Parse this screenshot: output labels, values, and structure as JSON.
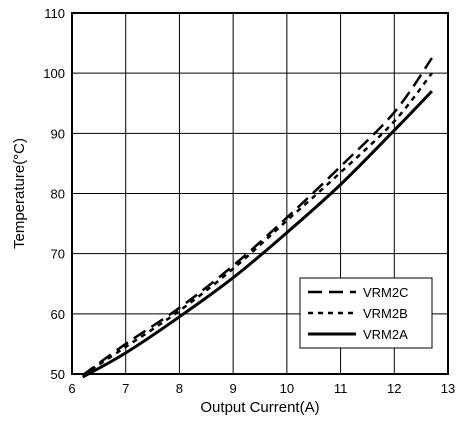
{
  "chart_data": {
    "type": "line",
    "xlabel": "Output Current(A)",
    "ylabel": "Temperature(°C)",
    "xlim": [
      6,
      13
    ],
    "ylim": [
      50,
      110
    ],
    "xticks": [
      "6",
      "7",
      "8",
      "9",
      "10",
      "11",
      "12",
      "13"
    ],
    "yticks": [
      "50",
      "60",
      "70",
      "80",
      "90",
      "100",
      "110"
    ],
    "grid": true,
    "legend_position": "lower-right",
    "series": [
      {
        "name": "VRM2C",
        "style": "long-dash",
        "x": [
          6.2,
          7,
          8,
          9,
          10,
          11,
          12,
          12.7
        ],
        "y": [
          49.8,
          55,
          61,
          68,
          76,
          84.5,
          93.5,
          102.5
        ]
      },
      {
        "name": "VRM2B",
        "style": "short-dash",
        "x": [
          6.2,
          7,
          8,
          9,
          10,
          11,
          12,
          12.7
        ],
        "y": [
          49.8,
          54.5,
          60.5,
          67.5,
          75.5,
          83.5,
          92,
          100
        ]
      },
      {
        "name": "VRM2A",
        "style": "solid",
        "x": [
          6.2,
          7,
          8,
          9,
          10,
          11,
          12,
          12.7
        ],
        "y": [
          49.5,
          53.5,
          59.5,
          66,
          73.5,
          81.5,
          90.5,
          97
        ]
      }
    ]
  }
}
